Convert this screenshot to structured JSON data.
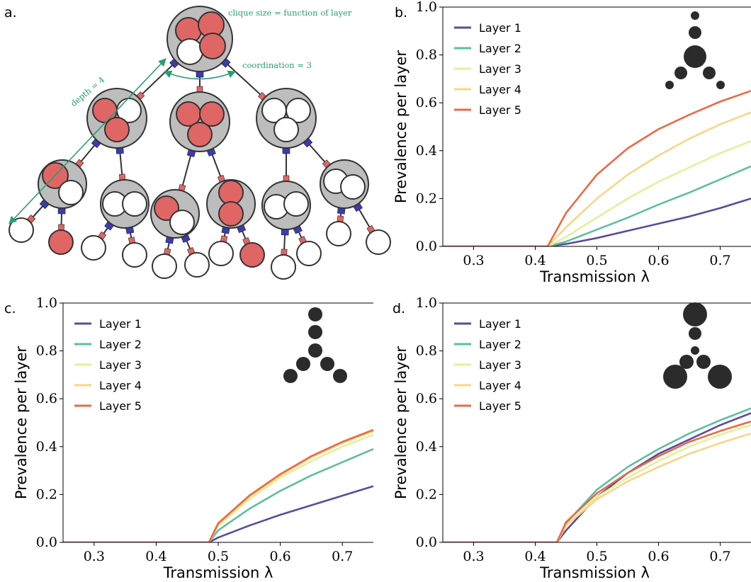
{
  "figure": {
    "panel_a": {
      "letter": "a.",
      "annotations": {
        "clique_size": "clique size = function of layer",
        "coordination": "coordination = 3",
        "depth": "depth = 4"
      },
      "colors": {
        "red": "#e06666",
        "blue": "#3b3bb3",
        "grey": "#bdbdbd",
        "arrow": "#2a9d74"
      }
    }
  },
  "chart_data": [
    {
      "panel": "b.",
      "type": "line",
      "xlabel": "Transmission λ",
      "ylabel": "Prevalence per layer",
      "xlim": [
        0.25,
        0.75
      ],
      "ylim": [
        0,
        1.0
      ],
      "xticks": [
        0.3,
        0.4,
        0.5,
        0.6,
        0.7
      ],
      "yticks": [
        0.0,
        0.2,
        0.4,
        0.6,
        0.8,
        1.0
      ],
      "legend_position": "top-left",
      "threshold": 0.42,
      "inset_icon": "structure-small-center-large",
      "series": [
        {
          "name": "Layer 1",
          "color": "#5b4b9b",
          "x": [
            0.25,
            0.42,
            0.45,
            0.5,
            0.55,
            0.6,
            0.65,
            0.7,
            0.75
          ],
          "y": [
            0,
            0,
            0.01,
            0.035,
            0.065,
            0.095,
            0.125,
            0.16,
            0.2
          ]
        },
        {
          "name": "Layer 2",
          "color": "#5ebea0",
          "x": [
            0.25,
            0.42,
            0.45,
            0.5,
            0.55,
            0.6,
            0.65,
            0.7,
            0.75
          ],
          "y": [
            0,
            0,
            0.02,
            0.07,
            0.12,
            0.175,
            0.225,
            0.28,
            0.335
          ]
        },
        {
          "name": "Layer 3",
          "color": "#e3f09a",
          "x": [
            0.25,
            0.42,
            0.45,
            0.5,
            0.55,
            0.6,
            0.65,
            0.7,
            0.75
          ],
          "y": [
            0,
            0,
            0.04,
            0.12,
            0.2,
            0.27,
            0.33,
            0.39,
            0.44
          ]
        },
        {
          "name": "Layer 4",
          "color": "#f8d588",
          "x": [
            0.25,
            0.42,
            0.45,
            0.5,
            0.55,
            0.6,
            0.65,
            0.7,
            0.75
          ],
          "y": [
            0,
            0,
            0.08,
            0.2,
            0.3,
            0.38,
            0.45,
            0.51,
            0.56
          ]
        },
        {
          "name": "Layer 5",
          "color": "#ea6a43",
          "x": [
            0.25,
            0.42,
            0.45,
            0.5,
            0.55,
            0.6,
            0.65,
            0.7,
            0.75
          ],
          "y": [
            0,
            0,
            0.14,
            0.3,
            0.41,
            0.49,
            0.55,
            0.605,
            0.65
          ]
        }
      ]
    },
    {
      "panel": "c.",
      "type": "line",
      "xlabel": "Transmission λ",
      "ylabel": "Prevalence per layer",
      "xlim": [
        0.25,
        0.75
      ],
      "ylim": [
        0,
        1.0
      ],
      "xticks": [
        0.3,
        0.4,
        0.5,
        0.6,
        0.7
      ],
      "yticks": [
        0.0,
        0.2,
        0.4,
        0.6,
        0.8,
        1.0
      ],
      "legend_position": "top-left",
      "threshold": 0.485,
      "inset_icon": "structure-uniform",
      "series": [
        {
          "name": "Layer 1",
          "color": "#5b4b9b",
          "x": [
            0.25,
            0.485,
            0.5,
            0.55,
            0.6,
            0.65,
            0.7,
            0.75
          ],
          "y": [
            0,
            0,
            0.02,
            0.07,
            0.115,
            0.155,
            0.195,
            0.235
          ]
        },
        {
          "name": "Layer 2",
          "color": "#5ebea0",
          "x": [
            0.25,
            0.485,
            0.5,
            0.55,
            0.6,
            0.65,
            0.7,
            0.75
          ],
          "y": [
            0,
            0,
            0.05,
            0.14,
            0.215,
            0.28,
            0.335,
            0.39
          ]
        },
        {
          "name": "Layer 3",
          "color": "#e3f09a",
          "x": [
            0.25,
            0.485,
            0.5,
            0.55,
            0.6,
            0.65,
            0.7,
            0.75
          ],
          "y": [
            0,
            0,
            0.07,
            0.18,
            0.27,
            0.34,
            0.4,
            0.45
          ]
        },
        {
          "name": "Layer 4",
          "color": "#f8d588",
          "x": [
            0.25,
            0.485,
            0.5,
            0.55,
            0.6,
            0.65,
            0.7,
            0.75
          ],
          "y": [
            0,
            0,
            0.075,
            0.19,
            0.28,
            0.355,
            0.415,
            0.465
          ]
        },
        {
          "name": "Layer 5",
          "color": "#ea6a43",
          "x": [
            0.25,
            0.485,
            0.5,
            0.55,
            0.6,
            0.65,
            0.7,
            0.75
          ],
          "y": [
            0,
            0,
            0.08,
            0.195,
            0.285,
            0.36,
            0.42,
            0.47
          ]
        }
      ]
    },
    {
      "panel": "d.",
      "type": "line",
      "xlabel": "Transmission λ",
      "ylabel": "Prevalence per layer",
      "xlim": [
        0.25,
        0.75
      ],
      "ylim": [
        0,
        1.0
      ],
      "xticks": [
        0.3,
        0.4,
        0.5,
        0.6,
        0.7
      ],
      "yticks": [
        0.0,
        0.2,
        0.4,
        0.6,
        0.8,
        1.0
      ],
      "legend_position": "top-left",
      "threshold": 0.435,
      "inset_icon": "structure-large-ends",
      "series": [
        {
          "name": "Layer 1",
          "color": "#5b4b9b",
          "x": [
            0.25,
            0.435,
            0.45,
            0.5,
            0.55,
            0.6,
            0.65,
            0.7,
            0.75
          ],
          "y": [
            0,
            0,
            0.05,
            0.19,
            0.29,
            0.37,
            0.43,
            0.49,
            0.54
          ]
        },
        {
          "name": "Layer 2",
          "color": "#5ebea0",
          "x": [
            0.25,
            0.435,
            0.45,
            0.5,
            0.55,
            0.6,
            0.65,
            0.7,
            0.75
          ],
          "y": [
            0,
            0,
            0.08,
            0.22,
            0.315,
            0.39,
            0.455,
            0.51,
            0.56
          ]
        },
        {
          "name": "Layer 3",
          "color": "#e3f09a",
          "x": [
            0.25,
            0.435,
            0.45,
            0.5,
            0.55,
            0.6,
            0.65,
            0.7,
            0.75
          ],
          "y": [
            0,
            0,
            0.07,
            0.19,
            0.27,
            0.34,
            0.4,
            0.45,
            0.49
          ]
        },
        {
          "name": "Layer 4",
          "color": "#f8d588",
          "x": [
            0.25,
            0.435,
            0.45,
            0.5,
            0.55,
            0.6,
            0.65,
            0.7,
            0.75
          ],
          "y": [
            0,
            0,
            0.07,
            0.18,
            0.255,
            0.315,
            0.37,
            0.415,
            0.455
          ]
        },
        {
          "name": "Layer 5",
          "color": "#ea6a43",
          "x": [
            0.25,
            0.435,
            0.45,
            0.5,
            0.55,
            0.6,
            0.65,
            0.7,
            0.75
          ],
          "y": [
            0,
            0,
            0.085,
            0.205,
            0.29,
            0.36,
            0.42,
            0.465,
            0.505
          ]
        }
      ]
    }
  ]
}
